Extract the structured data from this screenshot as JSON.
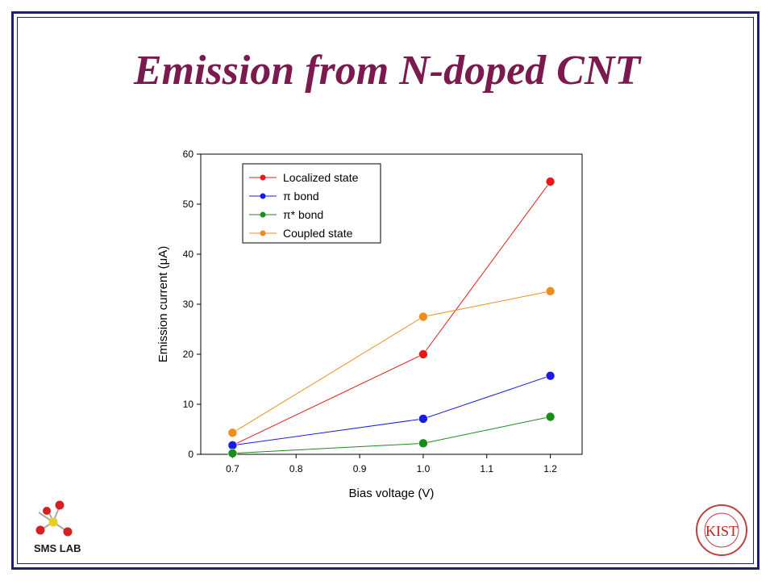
{
  "slide": {
    "title": "Emission from N-doped CNT"
  },
  "logos": {
    "left_label": "SMS LAB",
    "right_label": "KIST"
  },
  "chart_data": {
    "type": "line",
    "title": "",
    "xlabel": "Bias voltage (V)",
    "ylabel": "Emission current (μA)",
    "xlim": [
      0.65,
      1.25
    ],
    "ylim": [
      0,
      60
    ],
    "xticks": [
      0.7,
      0.8,
      0.9,
      1.0,
      1.1,
      1.2
    ],
    "xtick_labels": [
      "0.7",
      "0.8",
      "0.9",
      "1.0",
      "1.1",
      "1.2"
    ],
    "yticks": [
      0,
      10,
      20,
      30,
      40,
      50,
      60
    ],
    "ytick_labels": [
      "0",
      "10",
      "20",
      "30",
      "40",
      "50",
      "60"
    ],
    "grid": false,
    "legend_position": "top-left",
    "x": [
      0.7,
      1.0,
      1.2
    ],
    "series": [
      {
        "name": "Localized state",
        "color": "#e81818",
        "values": [
          1.8,
          20.0,
          54.5
        ]
      },
      {
        "name": "π bond",
        "color": "#1a1ae8",
        "values": [
          1.8,
          7.1,
          15.7
        ]
      },
      {
        "name": "π* bond",
        "color": "#1a8c1a",
        "values": [
          0.2,
          2.2,
          7.5
        ]
      },
      {
        "name": "Coupled state",
        "color": "#f08c1a",
        "values": [
          4.3,
          27.5,
          32.6
        ]
      }
    ]
  }
}
